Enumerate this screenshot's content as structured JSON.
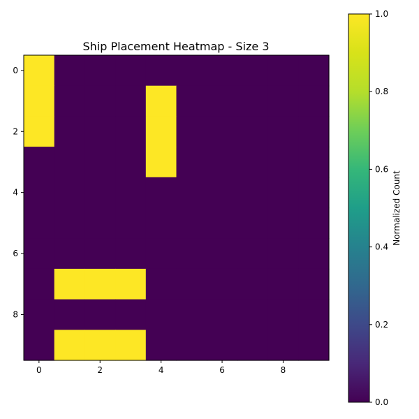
{
  "chart_data": {
    "type": "heatmap",
    "title": "Ship Placement Heatmap - Size 3",
    "xlabel": "",
    "ylabel": "",
    "x_ticks": [
      "0",
      "2",
      "4",
      "6",
      "8"
    ],
    "y_ticks": [
      "0",
      "2",
      "4",
      "6",
      "8"
    ],
    "rows": 10,
    "cols": 10,
    "values": [
      [
        1,
        0,
        0,
        0,
        0,
        0,
        0,
        0,
        0,
        0
      ],
      [
        1,
        0,
        0,
        0,
        1,
        0,
        0,
        0,
        0,
        0
      ],
      [
        1,
        0,
        0,
        0,
        1,
        0,
        0,
        0,
        0,
        0
      ],
      [
        0,
        0,
        0,
        0,
        1,
        0,
        0,
        0,
        0,
        0
      ],
      [
        0,
        0,
        0,
        0,
        0,
        0,
        0,
        0,
        0,
        0
      ],
      [
        0,
        0,
        0,
        0,
        0,
        0,
        0,
        0,
        0,
        0
      ],
      [
        0,
        0,
        0,
        0,
        0,
        0,
        0,
        0,
        0,
        0
      ],
      [
        0,
        1,
        1,
        1,
        0,
        0,
        0,
        0,
        0,
        0
      ],
      [
        0,
        0,
        0,
        0,
        0,
        0,
        0,
        0,
        0,
        0
      ],
      [
        0,
        1,
        1,
        1,
        0,
        0,
        0,
        0,
        0,
        0
      ]
    ],
    "colorbar": {
      "label": "Normalized Count",
      "ticks": [
        "0.0",
        "0.2",
        "0.4",
        "0.6",
        "0.8",
        "1.0"
      ],
      "range": [
        0,
        1
      ],
      "colormap": "viridis"
    },
    "colors": {
      "low": "#440154",
      "high": "#fde725"
    }
  }
}
